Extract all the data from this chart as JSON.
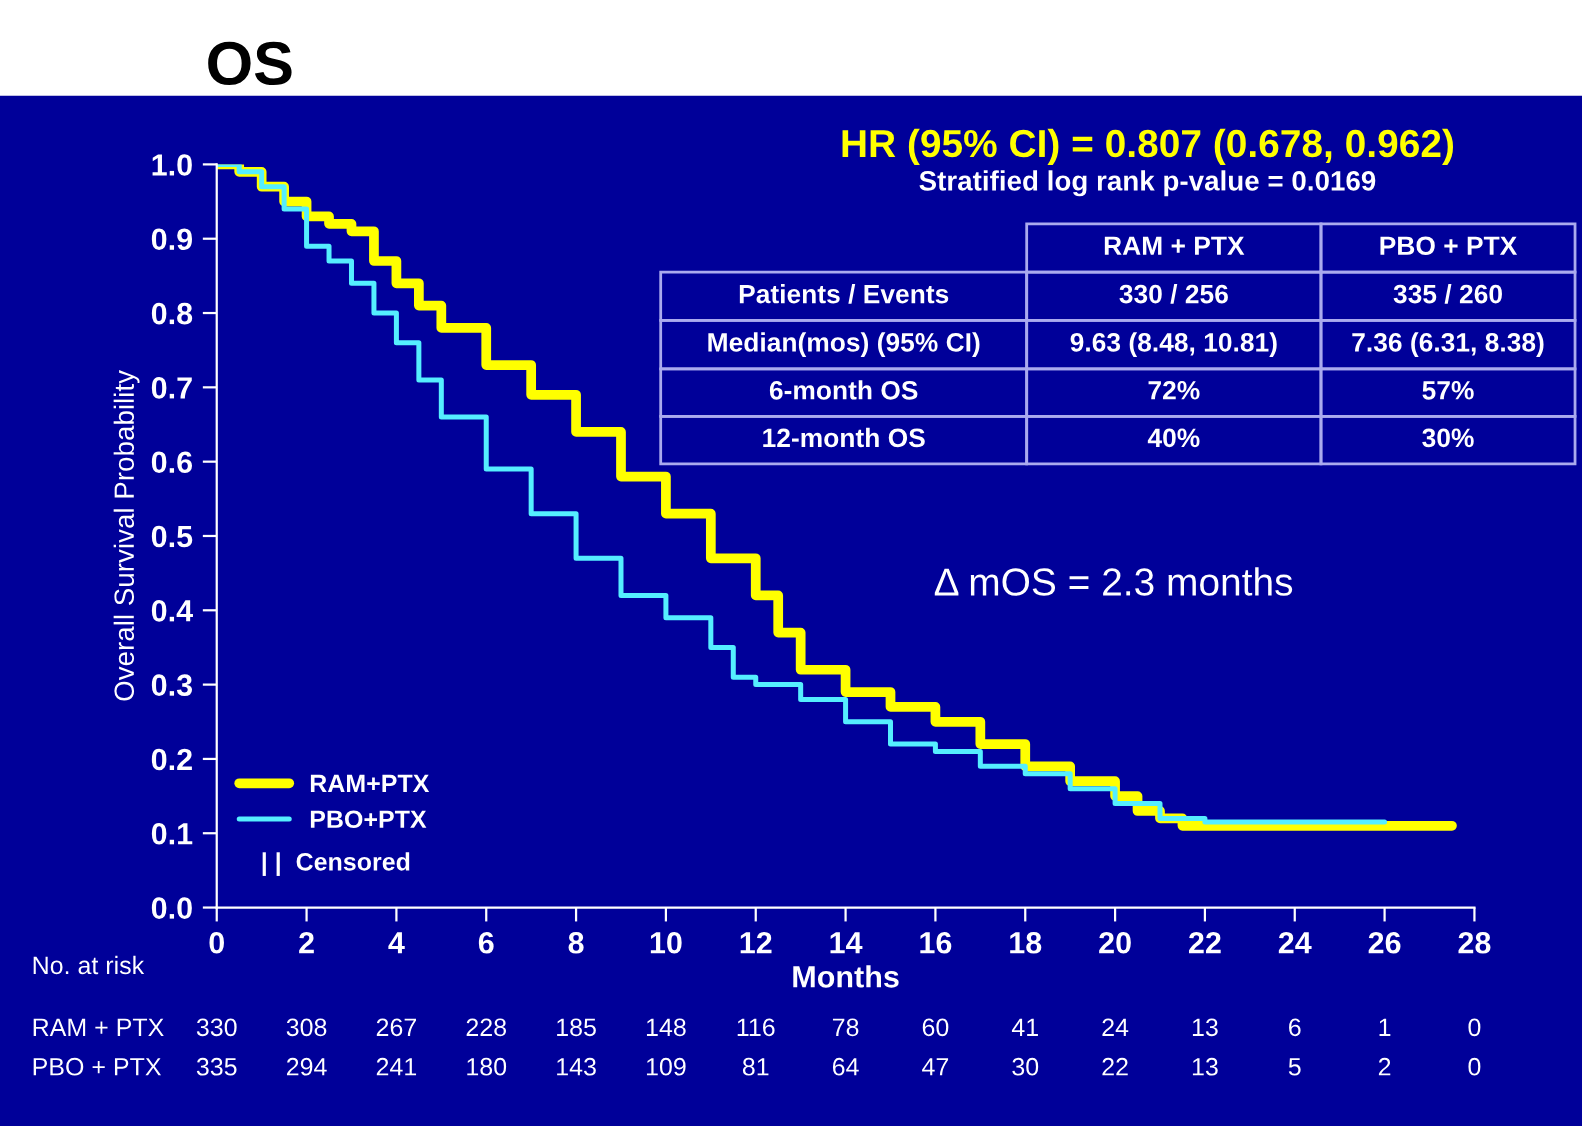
{
  "chart_data": {
    "type": "step",
    "title": "OS",
    "xlabel": "Months",
    "ylabel": "Overall Survival Probability",
    "xlim": [
      0,
      28
    ],
    "xticks": [
      0,
      2,
      4,
      6,
      8,
      10,
      12,
      14,
      16,
      18,
      20,
      22,
      24,
      26,
      28
    ],
    "ylim": [
      0,
      1.0
    ],
    "yticks": [
      {
        "value": 0,
        "label": "0.0"
      },
      0.1,
      0.2,
      0.3,
      0.4,
      0.5,
      0.6,
      0.7,
      0.8,
      0.9,
      {
        "value": 1,
        "label": "1.0"
      }
    ],
    "grid": false,
    "legend": "bottom left",
    "line_style": "solid",
    "marker": "none",
    "series": [
      {
        "name": "RAM+PTX",
        "color": "#ffff00",
        "x": [
          0,
          0.5,
          1,
          1.5,
          2,
          2.5,
          3,
          3.5,
          4,
          4.5,
          5,
          6,
          7,
          8,
          9,
          10,
          11,
          12,
          12.5,
          13,
          14,
          15,
          16,
          17,
          18,
          19,
          20,
          20.5,
          21,
          21.5,
          27.5
        ],
        "values": [
          1.0,
          0.99,
          0.97,
          0.95,
          0.93,
          0.92,
          0.91,
          0.87,
          0.84,
          0.81,
          0.78,
          0.73,
          0.69,
          0.64,
          0.58,
          0.53,
          0.47,
          0.42,
          0.37,
          0.32,
          0.29,
          0.27,
          0.25,
          0.22,
          0.19,
          0.17,
          0.15,
          0.13,
          0.12,
          0.11,
          0.11
        ]
      },
      {
        "name": "PBO+PTX",
        "color": "#55eeff",
        "x": [
          0,
          0.5,
          1,
          1.5,
          2,
          2.5,
          3,
          3.5,
          4,
          4.5,
          5,
          6,
          7,
          8,
          9,
          10,
          11,
          11.5,
          12,
          13,
          14,
          15,
          16,
          17,
          18,
          19,
          20,
          21,
          22,
          26
        ],
        "values": [
          1.0,
          0.99,
          0.97,
          0.94,
          0.89,
          0.87,
          0.84,
          0.8,
          0.76,
          0.71,
          0.66,
          0.59,
          0.53,
          0.47,
          0.42,
          0.39,
          0.35,
          0.31,
          0.3,
          0.28,
          0.25,
          0.22,
          0.21,
          0.19,
          0.18,
          0.16,
          0.14,
          0.12,
          0.115,
          0.115
        ]
      }
    ],
    "annotations": [
      "HR (95% CI) = 0.807 (0.678, 0.962)",
      "Stratified log rank p-value = 0.0169",
      "RAM + PTX",
      "PBO + PTX",
      "Patients / Events",
      "330 / 256",
      "335 / 260",
      "Median(mos) (95% CI)",
      "9.63 (8.48, 10.81)",
      "7.36 (6.31, 8.38)",
      "6-month OS",
      "72%",
      "57%",
      "12-month OS",
      "40%",
      "30%",
      "Δ mOS = 2.3 months",
      "| |  Censored",
      "No. at risk",
      "RAM + PTX",
      "330",
      "308",
      "267",
      "228",
      "185",
      "148",
      "116",
      "78",
      "60",
      "41",
      "24",
      "13",
      "6",
      "1",
      "0",
      "PBO + PTX",
      "335",
      "294",
      "241",
      "180",
      "143",
      "109",
      "81",
      "64",
      "47",
      "30",
      "22",
      "13",
      "5",
      "2",
      "0"
    ]
  }
}
